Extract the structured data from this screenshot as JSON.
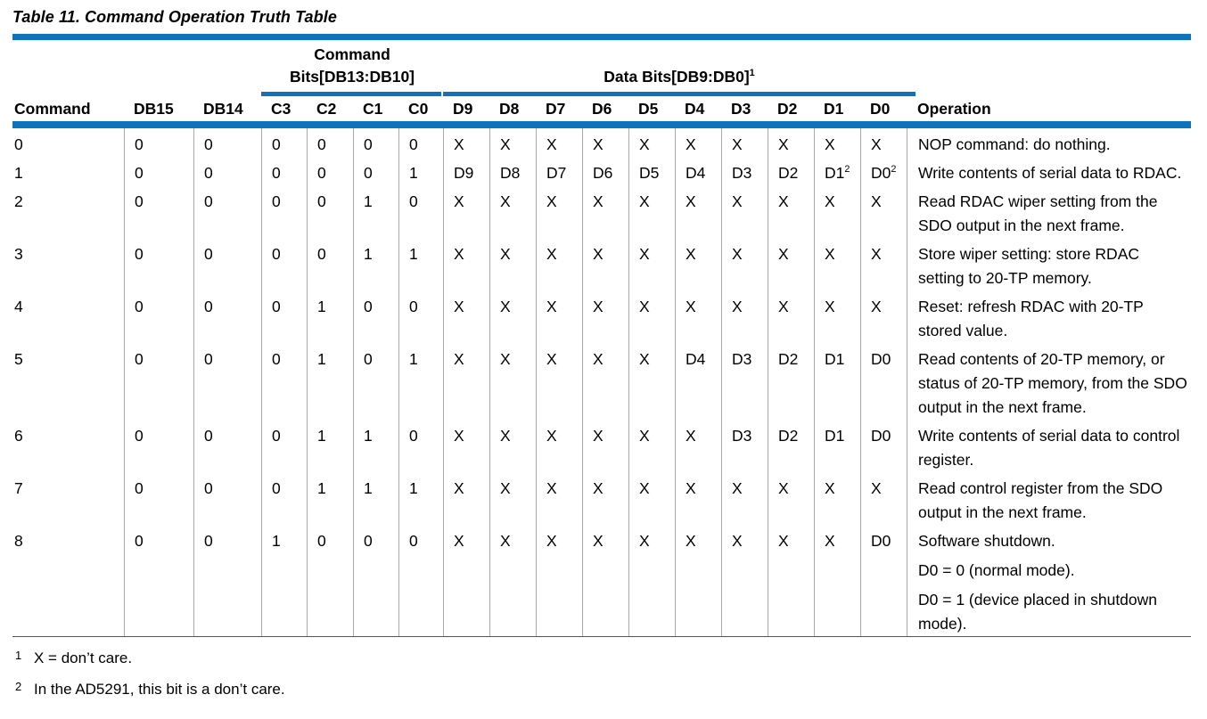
{
  "colors": {
    "accent_blue": "#0e72bd",
    "column_separator_gray": "#a9a9a9",
    "bottom_rule_gray": "#555555"
  },
  "caption": "Table 11. Command Operation Truth Table",
  "table": {
    "group_headers": [
      {
        "lines": [
          "Command",
          "Bits[DB13:DB10]"
        ],
        "spans": "C3:C0"
      },
      {
        "lines": [
          "Data Bits[DB9:DB0]^1"
        ],
        "spans": "D9:D0"
      }
    ],
    "column_headers": [
      "Command",
      "DB15",
      "DB14",
      "C3",
      "C2",
      "C1",
      "C0",
      "D9",
      "D8",
      "D7",
      "D6",
      "D5",
      "D4",
      "D3",
      "D2",
      "D1",
      "D0",
      "Operation"
    ],
    "rows": [
      {
        "command": "0",
        "bits": [
          "0",
          "0",
          "0",
          "0",
          "0",
          "0",
          "X",
          "X",
          "X",
          "X",
          "X",
          "X",
          "X",
          "X",
          "X",
          "X"
        ],
        "operation": [
          [
            "NOP command: do nothing."
          ]
        ]
      },
      {
        "command": "1",
        "bits": [
          "0",
          "0",
          "0",
          "0",
          "0",
          "1",
          "D9",
          "D8",
          "D7",
          "D6",
          "D5",
          "D4",
          "D3",
          "D2",
          "D1^2",
          "D0^2"
        ],
        "operation": [
          [
            "Write contents of serial data to RDAC."
          ]
        ]
      },
      {
        "command": "2",
        "bits": [
          "0",
          "0",
          "0",
          "0",
          "1",
          "0",
          "X",
          "X",
          "X",
          "X",
          "X",
          "X",
          "X",
          "X",
          "X",
          "X"
        ],
        "operation": [
          [
            "Read RDAC wiper setting from the",
            "SDO output in the next frame."
          ]
        ]
      },
      {
        "command": "3",
        "bits": [
          "0",
          "0",
          "0",
          "0",
          "1",
          "1",
          "X",
          "X",
          "X",
          "X",
          "X",
          "X",
          "X",
          "X",
          "X",
          "X"
        ],
        "operation": [
          [
            "Store wiper setting: store RDAC",
            "setting to 20-TP memory."
          ]
        ]
      },
      {
        "command": "4",
        "bits": [
          "0",
          "0",
          "0",
          "1",
          "0",
          "0",
          "X",
          "X",
          "X",
          "X",
          "X",
          "X",
          "X",
          "X",
          "X",
          "X"
        ],
        "operation": [
          [
            "Reset: refresh RDAC with 20-TP",
            "stored value."
          ]
        ]
      },
      {
        "command": "5",
        "bits": [
          "0",
          "0",
          "0",
          "1",
          "0",
          "1",
          "X",
          "X",
          "X",
          "X",
          "X",
          "D4",
          "D3",
          "D2",
          "D1",
          "D0"
        ],
        "operation": [
          [
            "Read contents of 20-TP memory, or",
            "status of 20-TP memory, from the SDO",
            "output in the next frame."
          ]
        ]
      },
      {
        "command": "6",
        "bits": [
          "0",
          "0",
          "0",
          "1",
          "1",
          "0",
          "X",
          "X",
          "X",
          "X",
          "X",
          "X",
          "D3",
          "D2",
          "D1",
          "D0"
        ],
        "operation": [
          [
            "Write contents of serial data to control",
            "register."
          ]
        ]
      },
      {
        "command": "7",
        "bits": [
          "0",
          "0",
          "0",
          "1",
          "1",
          "1",
          "X",
          "X",
          "X",
          "X",
          "X",
          "X",
          "X",
          "X",
          "X",
          "X"
        ],
        "operation": [
          [
            "Read control register from the SDO",
            "output in the next frame."
          ]
        ]
      },
      {
        "command": "8",
        "bits": [
          "0",
          "0",
          "1",
          "0",
          "0",
          "0",
          "X",
          "X",
          "X",
          "X",
          "X",
          "X",
          "X",
          "X",
          "X",
          "D0"
        ],
        "operation": [
          [
            "Software shutdown."
          ],
          [
            "D0 = 0 (normal mode)."
          ],
          [
            "D0 = 1 (device placed in shutdown",
            "mode)."
          ]
        ]
      }
    ]
  },
  "footnotes": [
    {
      "marker": "1",
      "text": "X = don’t care."
    },
    {
      "marker": "2",
      "text": "In the AD5291, this bit is a don’t care."
    }
  ]
}
